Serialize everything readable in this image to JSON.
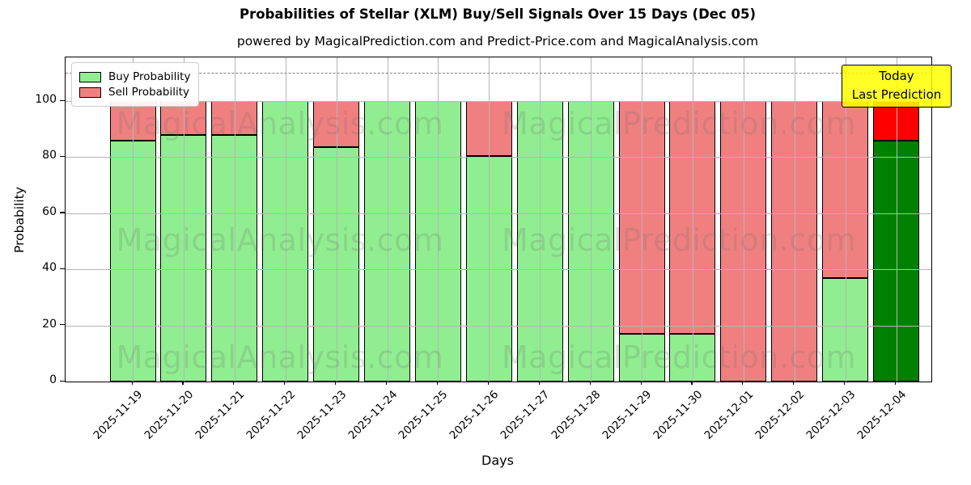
{
  "chart_data": {
    "type": "bar",
    "stacked": true,
    "title": "Probabilities of Stellar (XLM) Buy/Sell Signals Over 15 Days (Dec 05)",
    "subtitle": "powered by MagicalPrediction.com and Predict-Price.com and MagicalAnalysis.com",
    "xlabel": "Days",
    "ylabel": "Probability",
    "ylim": [
      0,
      115.6
    ],
    "yticks": [
      0,
      20,
      40,
      60,
      80,
      100
    ],
    "dashed_guide_y": 110,
    "grid": true,
    "legend_position": "upper left",
    "categories": [
      "2025-11-19",
      "2025-11-20",
      "2025-11-21",
      "2025-11-22",
      "2025-11-23",
      "2025-11-24",
      "2025-11-25",
      "2025-11-26",
      "2025-11-27",
      "2025-11-28",
      "2025-11-29",
      "2025-11-30",
      "2025-12-01",
      "2025-12-02",
      "2025-12-03",
      "2025-12-04"
    ],
    "series": [
      {
        "name": "Buy Probability",
        "color": "#90EE90",
        "values": [
          86,
          88,
          88,
          100,
          83.5,
          100,
          100,
          80.5,
          100,
          100,
          17,
          17,
          0,
          0,
          37,
          86
        ]
      },
      {
        "name": "Sell Probability",
        "color": "#F08080",
        "values": [
          14,
          12,
          12,
          0,
          16.5,
          0,
          0,
          19.5,
          0,
          0,
          83,
          83,
          100,
          100,
          63,
          14
        ]
      }
    ],
    "last_bar_colors": {
      "buy": "#008000",
      "sell": "#FF0000"
    },
    "bar_edge_color": "#000000",
    "today_annotation": {
      "line1": "Today",
      "line2": "Last Prediction",
      "bg_color": "#FFFF00"
    },
    "watermarks": {
      "left_text": "MagicalAnalysis.com",
      "right_text": "MagicalPrediction.com",
      "rows": 3
    },
    "colors": {
      "grid": "#b5b5b5",
      "dashed_guide": "#7f7f7f"
    }
  }
}
